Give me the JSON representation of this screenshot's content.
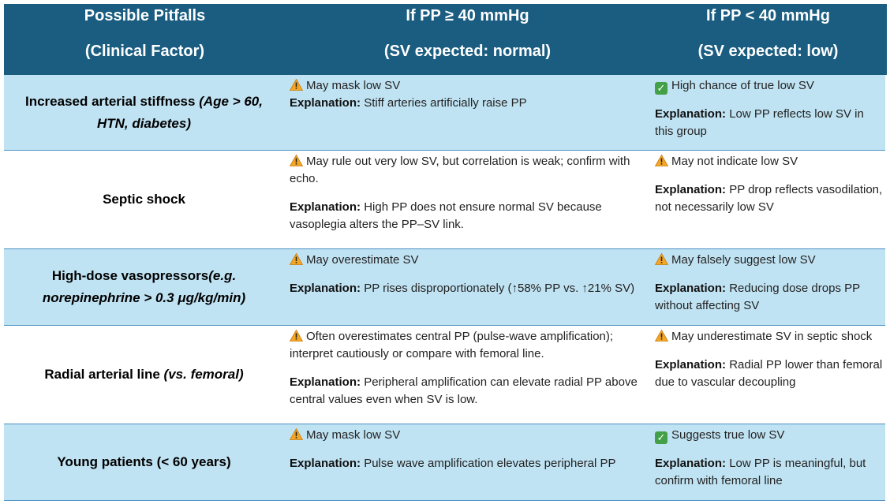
{
  "header": {
    "col1_line1": "Possible Pitfalls",
    "col1_line2": "(Clinical Factor)",
    "col2_line1": "If PP ≥ 40 mmHg",
    "col2_line2": "(SV expected: normal)",
    "col3_line1": "If PP < 40 mmHg",
    "col3_line2": "(SV expected: low)"
  },
  "explanation_label": "Explanation:",
  "rows": [
    {
      "factor": "Increased arterial stiffness",
      "factor_italic": "(Age > 60, HTN, diabetes)",
      "high_icon": "warning-icon",
      "high_note": "May mask low SV",
      "high_explanation": "Stiff arteries artificially raise PP",
      "low_icon": "check-icon",
      "low_note": "High chance of true low SV",
      "low_explanation": "Low PP reflects low SV in this group"
    },
    {
      "factor": "Septic shock",
      "factor_italic": "",
      "high_icon": "warning-icon",
      "high_note": "May rule out very low SV, but correlation is weak; confirm with echo.",
      "high_explanation": "High PP does not ensure normal SV because vasoplegia alters the PP–SV link.",
      "low_icon": "warning-icon",
      "low_note": "May not indicate low SV",
      "low_explanation": "PP drop reflects vasodilation, not necessarily low SV"
    },
    {
      "factor": "High-dose vasopressors",
      "factor_italic": "(e.g. norepinephrine > 0.3 μg/kg/min)",
      "high_icon": "warning-icon",
      "high_note": "May overestimate SV",
      "high_explanation": "PP rises disproportionately (↑58% PP vs. ↑21% SV)",
      "low_icon": "warning-icon",
      "low_note": "May falsely suggest low SV",
      "low_explanation": "Reducing dose drops PP without affecting SV"
    },
    {
      "factor": "Radial arterial line",
      "factor_italic": "(vs. femoral)",
      "high_icon": "warning-icon",
      "high_note": "Often overestimates central PP (pulse-wave amplification); interpret cautiously or compare with femoral line.",
      "high_explanation": "Peripheral amplification can elevate radial PP above central values even when SV is low.",
      "low_icon": "warning-icon",
      "low_note": "May underestimate SV in septic shock",
      "low_explanation": "Radial PP lower than femoral due to vascular decoupling"
    },
    {
      "factor": "Young patients (< 60 years)",
      "factor_italic": "",
      "high_icon": "warning-icon",
      "high_note": "May mask low SV",
      "high_explanation": "Pulse wave amplification elevates peripheral PP",
      "low_icon": "check-icon",
      "low_note": "Suggests true low SV",
      "low_explanation": "Low PP is meaningful, but confirm with femoral line"
    }
  ],
  "colors": {
    "header_bg": "#1a5d80",
    "row_blue": "#c0e3f3",
    "row_white": "#ffffff",
    "warning": "#f5a623",
    "check": "#43a047"
  }
}
